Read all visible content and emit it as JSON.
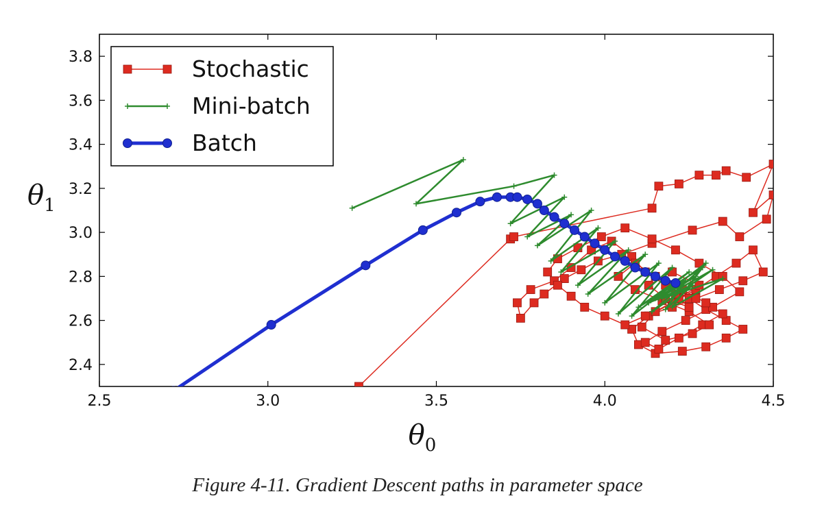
{
  "caption": "Figure 4-11. Gradient Descent paths in parameter space",
  "chart_data": {
    "type": "line",
    "xlabel": "θ0",
    "ylabel": "θ1",
    "xlim": [
      2.5,
      4.5
    ],
    "ylim": [
      2.3,
      3.9
    ],
    "x_ticks": [
      "2.5",
      "3.0",
      "3.5",
      "4.0",
      "4.5"
    ],
    "y_ticks": [
      "2.4",
      "2.6",
      "2.8",
      "3.0",
      "3.2",
      "3.4",
      "3.6",
      "3.8"
    ],
    "grid": false,
    "legend_position": "top-left",
    "series": [
      {
        "name": "Stochastic",
        "color": "#dd2b20",
        "marker": "square",
        "line_width": 1.5,
        "x": [
          3.27,
          3.72,
          3.73,
          4.14,
          4.16,
          4.22,
          4.28,
          4.33,
          4.36,
          4.42,
          4.5,
          4.44,
          4.5,
          4.48,
          4.4,
          4.35,
          4.26,
          4.14,
          4.05,
          3.98,
          3.93,
          3.88,
          3.82,
          3.79,
          3.75,
          3.74,
          3.78,
          3.85,
          3.9,
          3.96,
          4.02,
          4.08,
          4.12,
          4.18,
          4.25,
          4.3,
          4.36,
          4.41,
          4.36,
          4.3,
          4.23,
          4.15,
          4.1,
          4.08,
          4.13,
          4.2,
          4.27,
          4.33,
          4.39,
          4.44,
          4.47,
          4.41,
          4.34,
          4.27,
          4.2,
          4.12,
          4.06,
          4.0,
          3.94,
          3.9,
          3.86,
          3.83,
          3.86,
          3.92,
          3.99,
          4.06,
          4.14,
          4.21,
          4.28,
          4.35,
          4.4,
          4.32,
          4.24,
          4.17,
          4.12,
          4.16,
          4.22,
          4.29,
          4.35,
          4.3,
          4.23,
          4.15,
          4.09,
          4.04,
          4.09,
          4.17,
          4.25,
          4.31,
          4.26,
          4.18,
          4.11,
          4.15,
          4.22,
          4.28,
          4.2,
          4.13,
          4.18,
          4.25,
          4.21
        ],
        "y": [
          2.3,
          2.97,
          2.98,
          3.11,
          3.21,
          3.22,
          3.26,
          3.26,
          3.28,
          3.25,
          3.31,
          3.09,
          3.17,
          3.06,
          2.98,
          3.05,
          3.01,
          2.95,
          2.9,
          2.87,
          2.83,
          2.79,
          2.72,
          2.68,
          2.61,
          2.68,
          2.74,
          2.78,
          2.84,
          2.92,
          2.96,
          2.89,
          2.82,
          2.76,
          2.7,
          2.65,
          2.6,
          2.56,
          2.52,
          2.48,
          2.46,
          2.45,
          2.49,
          2.56,
          2.62,
          2.68,
          2.74,
          2.8,
          2.86,
          2.92,
          2.82,
          2.78,
          2.74,
          2.7,
          2.66,
          2.62,
          2.58,
          2.62,
          2.66,
          2.71,
          2.76,
          2.82,
          2.88,
          2.93,
          2.98,
          3.02,
          2.97,
          2.92,
          2.86,
          2.8,
          2.73,
          2.66,
          2.6,
          2.55,
          2.5,
          2.47,
          2.52,
          2.58,
          2.63,
          2.68,
          2.74,
          2.8,
          2.86,
          2.8,
          2.74,
          2.69,
          2.64,
          2.58,
          2.54,
          2.51,
          2.57,
          2.64,
          2.7,
          2.76,
          2.82,
          2.76,
          2.7,
          2.66,
          2.72
        ]
      },
      {
        "name": "Mini-batch",
        "color": "#2e8b2e",
        "marker": "plus",
        "line_width": 2.5,
        "x": [
          3.25,
          3.58,
          3.44,
          3.73,
          3.85,
          3.72,
          3.88,
          3.77,
          3.9,
          3.8,
          3.96,
          3.84,
          3.98,
          3.87,
          4.03,
          3.92,
          4.07,
          3.95,
          4.12,
          4.0,
          4.16,
          4.04,
          4.2,
          4.08,
          4.25,
          4.1,
          4.29,
          4.14,
          4.32,
          4.17,
          4.35,
          4.2,
          4.3,
          4.16,
          4.27,
          4.13,
          4.26,
          4.18,
          4.24,
          4.15,
          4.23,
          4.19
        ],
        "y": [
          3.11,
          3.33,
          3.13,
          3.21,
          3.26,
          3.04,
          3.16,
          2.98,
          3.08,
          2.94,
          3.1,
          2.87,
          3.02,
          2.82,
          2.96,
          2.76,
          2.92,
          2.72,
          2.9,
          2.68,
          2.86,
          2.63,
          2.84,
          2.62,
          2.82,
          2.66,
          2.84,
          2.64,
          2.83,
          2.7,
          2.79,
          2.66,
          2.86,
          2.7,
          2.8,
          2.68,
          2.76,
          2.65,
          2.78,
          2.7,
          2.76,
          2.74
        ]
      },
      {
        "name": "Batch",
        "color": "#1f2fd0",
        "marker": "circle",
        "line_width": 5,
        "x": [
          2.72,
          3.01,
          3.29,
          3.46,
          3.56,
          3.63,
          3.68,
          3.72,
          3.74,
          3.77,
          3.8,
          3.82,
          3.85,
          3.88,
          3.91,
          3.94,
          3.97,
          4.0,
          4.03,
          4.06,
          4.09,
          4.12,
          4.15,
          4.18,
          4.21
        ],
        "y": [
          2.28,
          2.58,
          2.85,
          3.01,
          3.09,
          3.14,
          3.16,
          3.16,
          3.16,
          3.15,
          3.13,
          3.1,
          3.07,
          3.04,
          3.01,
          2.98,
          2.95,
          2.92,
          2.89,
          2.87,
          2.84,
          2.82,
          2.8,
          2.78,
          2.77
        ]
      }
    ]
  }
}
